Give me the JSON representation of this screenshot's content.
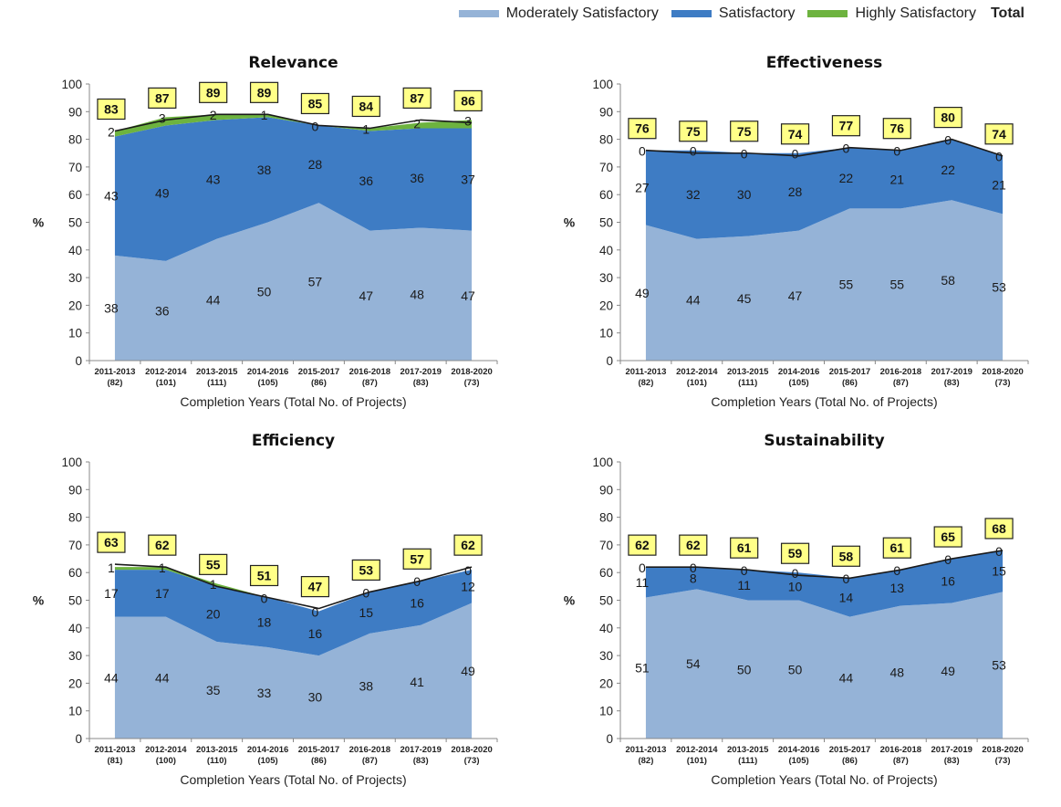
{
  "legend": {
    "moderately": "Moderately Satisfactory",
    "satisfactory": "Satisfactory",
    "highly": "Highly Satisfactory",
    "total": "Total"
  },
  "colors": {
    "moderately": "#95b3d7",
    "satisfactory": "#3e7cc4",
    "highly": "#6db33f",
    "total_box": "#ffff88",
    "total_line": "#1a1a1a"
  },
  "chart_data": [
    {
      "type": "area",
      "stacked": true,
      "title": "Relevance",
      "ylabel": "%",
      "xlabel": "Completion Years (Total No. of Projects)",
      "ylim": [
        0,
        100
      ],
      "yticks": [
        0,
        10,
        20,
        30,
        40,
        50,
        60,
        70,
        80,
        90,
        100
      ],
      "categories": [
        "2011-2013",
        "2012-2014",
        "2013-2015",
        "2014-2016",
        "2015-2017",
        "2016-2018",
        "2017-2019",
        "2018-2020"
      ],
      "category_counts": [
        "(82)",
        "(101)",
        "(111)",
        "(105)",
        "(86)",
        "(87)",
        "(83)",
        "(73)"
      ],
      "series": [
        {
          "name": "Moderately Satisfactory",
          "values": [
            38,
            36,
            44,
            50,
            57,
            47,
            48,
            47
          ]
        },
        {
          "name": "Satisfactory",
          "values": [
            43,
            49,
            43,
            38,
            28,
            36,
            36,
            37
          ]
        },
        {
          "name": "Highly Satisfactory",
          "values": [
            2,
            3,
            2,
            1,
            0,
            1,
            2,
            3
          ]
        }
      ],
      "totals": [
        83,
        87,
        89,
        89,
        85,
        84,
        87,
        86
      ]
    },
    {
      "type": "area",
      "stacked": true,
      "title": "Effectiveness",
      "ylabel": "%",
      "xlabel": "Completion Years (Total No. of Projects)",
      "ylim": [
        0,
        100
      ],
      "yticks": [
        0,
        10,
        20,
        30,
        40,
        50,
        60,
        70,
        80,
        90,
        100
      ],
      "categories": [
        "2011-2013",
        "2012-2014",
        "2013-2015",
        "2014-2016",
        "2015-2017",
        "2016-2018",
        "2017-2019",
        "2018-2020"
      ],
      "category_counts": [
        "(82)",
        "(101)",
        "(111)",
        "(105)",
        "(86)",
        "(87)",
        "(83)",
        "(73)"
      ],
      "series": [
        {
          "name": "Moderately Satisfactory",
          "values": [
            49,
            44,
            45,
            47,
            55,
            55,
            58,
            53
          ]
        },
        {
          "name": "Satisfactory",
          "values": [
            27,
            32,
            30,
            28,
            22,
            21,
            22,
            21
          ]
        },
        {
          "name": "Highly Satisfactory",
          "values": [
            0,
            0,
            0,
            0,
            0,
            0,
            0,
            0
          ]
        }
      ],
      "totals": [
        76,
        75,
        75,
        74,
        77,
        76,
        80,
        74
      ]
    },
    {
      "type": "area",
      "stacked": true,
      "title": "Efficiency",
      "ylabel": "%",
      "xlabel": "Completion Years (Total No. of Projects)",
      "ylim": [
        0,
        100
      ],
      "yticks": [
        0,
        10,
        20,
        30,
        40,
        50,
        60,
        70,
        80,
        90,
        100
      ],
      "categories": [
        "2011-2013",
        "2012-2014",
        "2013-2015",
        "2014-2016",
        "2015-2017",
        "2016-2018",
        "2017-2019",
        "2018-2020"
      ],
      "category_counts": [
        "(81)",
        "(100)",
        "(110)",
        "(105)",
        "(86)",
        "(87)",
        "(83)",
        "(73)"
      ],
      "series": [
        {
          "name": "Moderately Satisfactory",
          "values": [
            44,
            44,
            35,
            33,
            30,
            38,
            41,
            49
          ]
        },
        {
          "name": "Satisfactory",
          "values": [
            17,
            17,
            20,
            18,
            16,
            15,
            16,
            12
          ]
        },
        {
          "name": "Highly Satisfactory",
          "values": [
            1,
            1,
            1,
            0,
            0,
            0,
            0,
            0
          ]
        }
      ],
      "totals": [
        63,
        62,
        55,
        51,
        47,
        53,
        57,
        62
      ]
    },
    {
      "type": "area",
      "stacked": true,
      "title": "Sustainability",
      "ylabel": "%",
      "xlabel": "Completion Years (Total No. of Projects)",
      "ylim": [
        0,
        100
      ],
      "yticks": [
        0,
        10,
        20,
        30,
        40,
        50,
        60,
        70,
        80,
        90,
        100
      ],
      "categories": [
        "2011-2013",
        "2012-2014",
        "2013-2015",
        "2014-2016",
        "2015-2017",
        "2016-2018",
        "2017-2019",
        "2018-2020"
      ],
      "category_counts": [
        "(82)",
        "(101)",
        "(111)",
        "(105)",
        "(86)",
        "(87)",
        "(83)",
        "(73)"
      ],
      "series": [
        {
          "name": "Moderately Satisfactory",
          "values": [
            51,
            54,
            50,
            50,
            44,
            48,
            49,
            53
          ]
        },
        {
          "name": "Satisfactory",
          "values": [
            11,
            8,
            11,
            10,
            14,
            13,
            16,
            15
          ]
        },
        {
          "name": "Highly Satisfactory",
          "values": [
            0,
            0,
            0,
            0,
            0,
            0,
            0,
            0
          ]
        }
      ],
      "totals": [
        62,
        62,
        61,
        59,
        58,
        61,
        65,
        68
      ]
    }
  ]
}
